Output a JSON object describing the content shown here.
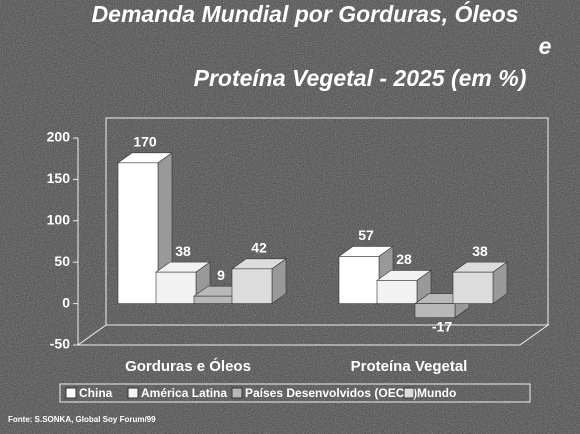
{
  "chart_data": {
    "type": "bar3d",
    "title": [
      "Demanda Mundial por Gorduras, Óleos",
      "e",
      "Proteína Vegetal - 2025 (em %)"
    ],
    "categories": [
      "Gorduras e Óleos",
      "Proteína Vegetal"
    ],
    "series": [
      {
        "name": "China",
        "color": "#ffffff",
        "values": [
          170,
          57
        ]
      },
      {
        "name": "América Latina",
        "color": "#f2f2f2",
        "values": [
          38,
          28
        ]
      },
      {
        "name": "Países Desenvolvidos (OECD)",
        "color": "#b8b8b8",
        "values": [
          9,
          -17
        ]
      },
      {
        "name": "Mundo",
        "color": "#dcdcdc",
        "values": [
          42,
          38
        ]
      }
    ],
    "ylim": [
      -50,
      200
    ],
    "yticks": [
      -50,
      0,
      50,
      100,
      150,
      200
    ],
    "source": "Fonte: S.SONKA, Global Soy Forum/99"
  }
}
